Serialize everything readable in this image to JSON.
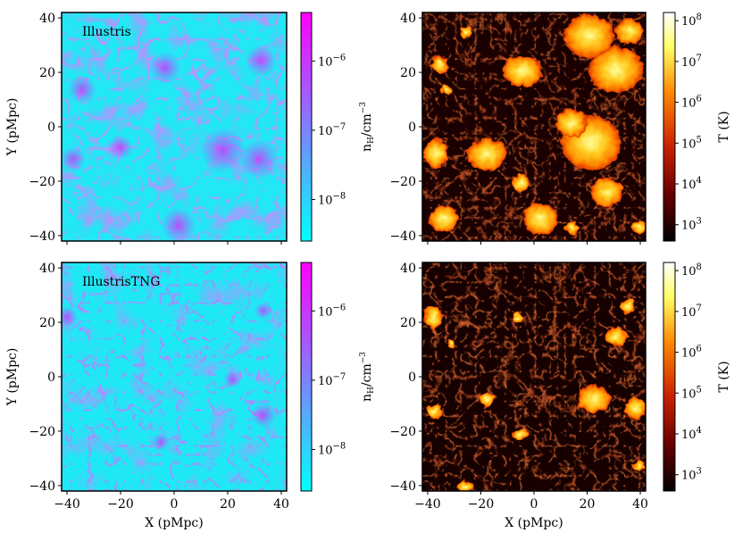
{
  "figure": {
    "xlabel": "X (pMpc)",
    "ylabel": "Y (pMpc)",
    "xticks": [
      "−40",
      "−20",
      "0",
      "20",
      "40"
    ],
    "yticks": [
      "40",
      "20",
      "0",
      "−20",
      "−40"
    ],
    "axis_range": [
      -42,
      42
    ]
  },
  "colorbars": {
    "density": {
      "label_main": "n",
      "label_sub": "H",
      "label_tail": "/cm",
      "label_sup": "−3",
      "tick_base": "10",
      "exponents": [
        "−6",
        "−7",
        "−8"
      ],
      "colors": [
        "#00ffff",
        "#ff00ff"
      ],
      "log_range": [
        -8.6,
        -5.3
      ]
    },
    "temperature": {
      "label": "T (K)",
      "tick_base": "10",
      "exponents": [
        "8",
        "7",
        "6",
        "5",
        "4",
        "3"
      ],
      "colors": [
        "#000000",
        "#660000",
        "#cc2200",
        "#ff8800",
        "#ffff66",
        "#ffffff"
      ],
      "log_range": [
        2.6,
        8.2
      ]
    }
  },
  "panels": {
    "illustris_density": {
      "label": "Illustris"
    },
    "tng_density": {
      "label": "IllustrisTNG"
    }
  },
  "chart_data": [
    {
      "type": "heatmap",
      "title": "Illustris",
      "quantity": "hydrogen number density n_H (cm^-3)",
      "xlabel": "",
      "ylabel": "Y (pMpc)",
      "xlim": [
        -42,
        42
      ],
      "ylim": [
        -42,
        42
      ],
      "color_range_log10": [
        -8.6,
        -5.3
      ],
      "colormap": "cool"
    },
    {
      "type": "heatmap",
      "title": "",
      "quantity": "temperature T (K)",
      "xlabel": "",
      "ylabel": "",
      "xlim": [
        -42,
        42
      ],
      "ylim": [
        -42,
        42
      ],
      "color_range_log10": [
        2.6,
        8.2
      ],
      "colormap": "hot"
    },
    {
      "type": "heatmap",
      "title": "IllustrisTNG",
      "quantity": "hydrogen number density n_H (cm^-3)",
      "xlabel": "X (pMpc)",
      "ylabel": "Y (pMpc)",
      "xlim": [
        -42,
        42
      ],
      "ylim": [
        -42,
        42
      ],
      "color_range_log10": [
        -8.6,
        -5.3
      ],
      "colormap": "cool"
    },
    {
      "type": "heatmap",
      "title": "",
      "quantity": "temperature T (K)",
      "xlabel": "X (pMpc)",
      "ylabel": "",
      "xlim": [
        -42,
        42
      ],
      "ylim": [
        -42,
        42
      ],
      "color_range_log10": [
        2.6,
        8.2
      ],
      "colormap": "hot"
    }
  ]
}
